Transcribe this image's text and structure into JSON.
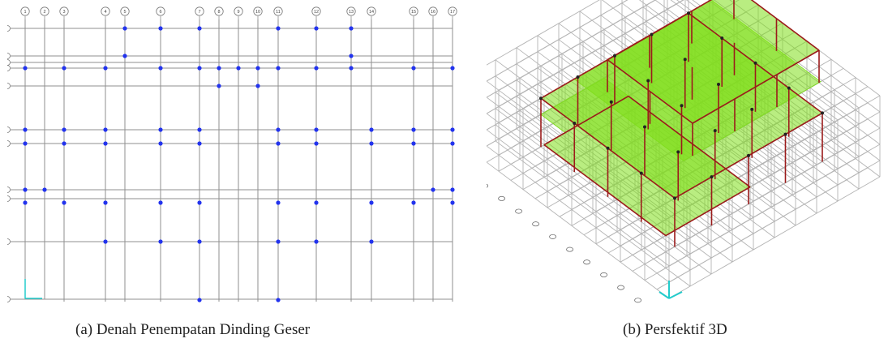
{
  "captions": {
    "a": "(a) Denah Penempatan Dinding Geser",
    "b": "(b) Persfektif 3D"
  },
  "plan": {
    "column_grid_labels": [
      "1",
      "2",
      "3",
      "4",
      "5",
      "6",
      "7",
      "8",
      "9",
      "10",
      "11",
      "12",
      "13",
      "14",
      "15",
      "16",
      "17"
    ],
    "colors": {
      "grid_line": "#8f8f8f",
      "shear_wall_dot": "#2233ee",
      "axis_marker": "#22cccc"
    }
  },
  "view3d": {
    "colors": {
      "slab_fill": "#7fdf1a",
      "frame_member": "#9b1b1b",
      "wire_grid": "#b4b4b4",
      "axis_marker": "#22cccc"
    }
  }
}
